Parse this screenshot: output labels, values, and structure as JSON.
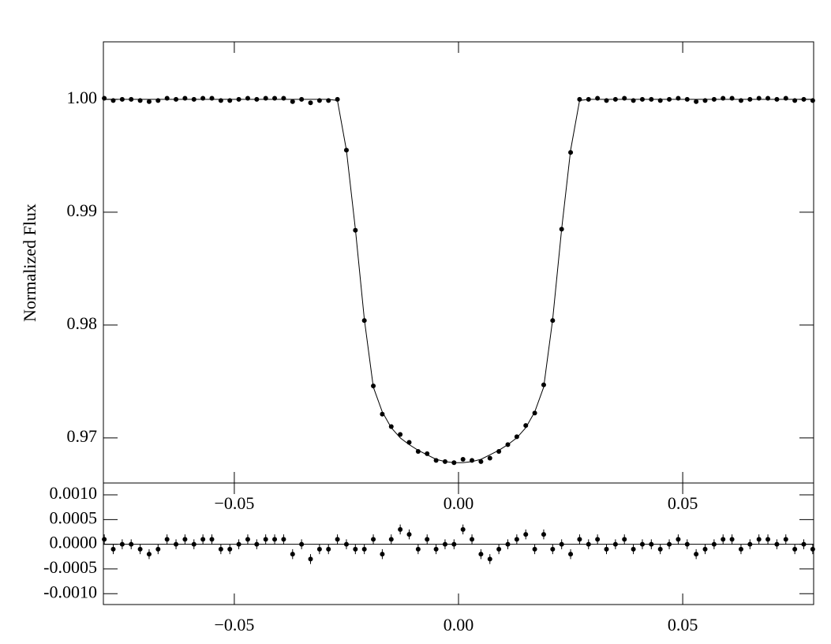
{
  "chart_data": [
    {
      "type": "scatter",
      "ylabel": "Normalized Flux",
      "x": [
        -0.079,
        -0.077,
        -0.075,
        -0.073,
        -0.071,
        -0.069,
        -0.067,
        -0.065,
        -0.063,
        -0.061,
        -0.059,
        -0.057,
        -0.055,
        -0.053,
        -0.051,
        -0.049,
        -0.047,
        -0.045,
        -0.043,
        -0.041,
        -0.039,
        -0.037,
        -0.035,
        -0.033,
        -0.031,
        -0.029,
        -0.027,
        -0.025,
        -0.023,
        -0.021,
        -0.019,
        -0.017,
        -0.015,
        -0.013,
        -0.011,
        -0.009,
        -0.007,
        -0.005,
        -0.003,
        -0.001,
        0.001,
        0.003,
        0.005,
        0.007,
        0.009,
        0.011,
        0.013,
        0.015,
        0.017,
        0.019,
        0.021,
        0.023,
        0.025,
        0.027,
        0.029,
        0.031,
        0.033,
        0.035,
        0.037,
        0.039,
        0.041,
        0.043,
        0.045,
        0.047,
        0.049,
        0.051,
        0.053,
        0.055,
        0.057,
        0.059,
        0.061,
        0.063,
        0.065,
        0.067,
        0.069,
        0.071,
        0.073,
        0.075,
        0.077,
        0.079
      ],
      "values": [
        1.0001,
        0.9999,
        1.0,
        1.0,
        0.9999,
        0.9998,
        0.9999,
        1.0001,
        1.0,
        1.0001,
        1.0,
        1.0001,
        1.0001,
        0.9999,
        0.9999,
        1.0,
        1.0001,
        1.0,
        1.0001,
        1.0001,
        1.0001,
        0.9998,
        1.0,
        0.9997,
        0.9999,
        0.9999,
        1.0,
        0.9955,
        0.9884,
        0.9804,
        0.9746,
        0.9721,
        0.971,
        0.9703,
        0.9696,
        0.9688,
        0.9686,
        0.968,
        0.9679,
        0.9678,
        0.9681,
        0.968,
        0.9679,
        0.9682,
        0.9688,
        0.9694,
        0.9701,
        0.9711,
        0.9722,
        0.9747,
        0.9804,
        0.9885,
        0.9953,
        1.0,
        1.0,
        1.0001,
        0.9999,
        1.0,
        1.0001,
        0.9999,
        1.0,
        1.0,
        0.9999,
        1.0,
        1.0001,
        1.0,
        0.9998,
        0.9999,
        1.0,
        1.0001,
        1.0001,
        0.9999,
        1.0,
        1.0001,
        1.0001,
        1.0,
        1.0001,
        0.9999,
        1.0,
        0.9999
      ],
      "model": [
        1.0,
        1.0,
        1.0,
        1.0,
        1.0,
        1.0,
        1.0,
        1.0,
        1.0,
        1.0,
        1.0,
        1.0,
        1.0,
        1.0,
        1.0,
        1.0,
        1.0,
        1.0,
        1.0,
        1.0,
        1.0,
        1.0,
        1.0,
        1.0,
        1.0,
        1.0,
        0.9999,
        0.9955,
        0.9885,
        0.9805,
        0.9745,
        0.9723,
        0.9709,
        0.97,
        0.9694,
        0.9689,
        0.9685,
        0.9681,
        0.9679,
        0.9678,
        0.9678,
        0.9679,
        0.9681,
        0.9685,
        0.9689,
        0.9694,
        0.97,
        0.9709,
        0.9723,
        0.9745,
        0.9805,
        0.9885,
        0.9955,
        0.9999,
        1.0,
        1.0,
        1.0,
        1.0,
        1.0,
        1.0,
        1.0,
        1.0,
        1.0,
        1.0,
        1.0,
        1.0,
        1.0,
        1.0,
        1.0,
        1.0,
        1.0,
        1.0,
        1.0,
        1.0,
        1.0,
        1.0,
        1.0,
        1.0,
        1.0,
        1.0
      ],
      "color": "#000000",
      "xlim": [
        -0.0792,
        0.0792
      ],
      "ylim": [
        0.966,
        1.0051
      ],
      "xticks": [
        {
          "value": -0.05,
          "label": "−0.05"
        },
        {
          "value": 0,
          "label": "0.00"
        },
        {
          "value": 0.05,
          "label": "0.05"
        }
      ],
      "yticks": [
        0.97,
        0.98,
        0.99,
        {
          "value": 1,
          "label": "1.00"
        }
      ]
    },
    {
      "type": "errorbar",
      "x": [
        -0.079,
        -0.077,
        -0.075,
        -0.073,
        -0.071,
        -0.069,
        -0.067,
        -0.065,
        -0.063,
        -0.061,
        -0.059,
        -0.057,
        -0.055,
        -0.053,
        -0.051,
        -0.049,
        -0.047,
        -0.045,
        -0.043,
        -0.041,
        -0.039,
        -0.037,
        -0.035,
        -0.033,
        -0.031,
        -0.029,
        -0.027,
        -0.025,
        -0.023,
        -0.021,
        -0.019,
        -0.017,
        -0.015,
        -0.013,
        -0.011,
        -0.009,
        -0.007,
        -0.005,
        -0.003,
        -0.001,
        0.001,
        0.003,
        0.005,
        0.007,
        0.009,
        0.011,
        0.013,
        0.015,
        0.017,
        0.019,
        0.021,
        0.023,
        0.025,
        0.027,
        0.029,
        0.031,
        0.033,
        0.035,
        0.037,
        0.039,
        0.041,
        0.043,
        0.045,
        0.047,
        0.049,
        0.051,
        0.053,
        0.055,
        0.057,
        0.059,
        0.061,
        0.063,
        0.065,
        0.067,
        0.069,
        0.071,
        0.073,
        0.075,
        0.077,
        0.079
      ],
      "values": [
        0.0001,
        -0.0001,
        0.0,
        0.0,
        -0.0001,
        -0.0002,
        -0.0001,
        0.0001,
        0.0,
        0.0001,
        0.0,
        0.0001,
        0.0001,
        -0.0001,
        -0.0001,
        0.0,
        0.0001,
        0.0,
        0.0001,
        0.0001,
        0.0001,
        -0.0002,
        0.0,
        -0.0003,
        -0.0001,
        -0.0001,
        0.0001,
        0.0,
        -0.0001,
        -0.0001,
        0.0001,
        -0.0002,
        0.0001,
        0.0003,
        0.0002,
        -0.0001,
        0.0001,
        -0.0001,
        0.0,
        0.0,
        0.0003,
        0.0001,
        -0.0002,
        -0.0003,
        -0.0001,
        0.0,
        0.0001,
        0.0002,
        -0.0001,
        0.0002,
        -0.0001,
        0.0,
        -0.0002,
        0.0001,
        0.0,
        0.0001,
        -0.0001,
        0.0,
        0.0001,
        -0.0001,
        0.0,
        0.0,
        -0.0001,
        0.0,
        0.0001,
        0.0,
        -0.0002,
        -0.0001,
        0.0,
        0.0001,
        0.0001,
        -0.0001,
        0.0,
        0.0001,
        0.0001,
        0.0,
        0.0001,
        -0.0001,
        0.0,
        -0.0001
      ],
      "error": 0.0001,
      "color": "#000000",
      "xlim": [
        -0.0792,
        0.0792
      ],
      "ylim": [
        -0.00122,
        0.00124
      ],
      "xticks": [
        {
          "value": -0.05,
          "label": "−0.05"
        },
        {
          "value": 0,
          "label": "0.00"
        },
        {
          "value": 0.05,
          "label": "0.05"
        }
      ],
      "yticks": [
        {
          "value": -0.001,
          "label": "-0.0010"
        },
        {
          "value": -0.0005,
          "label": "-0.0005"
        },
        {
          "value": 0,
          "label": "0.0000"
        },
        {
          "value": 0.0005,
          "label": "0.0005"
        },
        {
          "value": 0.001,
          "label": "0.0010"
        }
      ]
    }
  ]
}
